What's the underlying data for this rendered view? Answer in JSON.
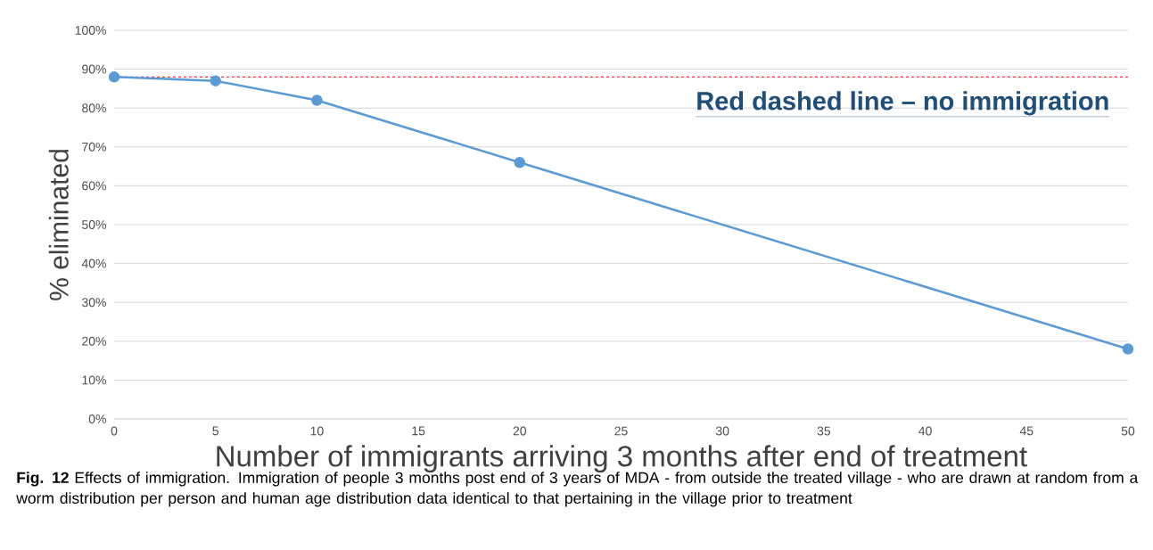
{
  "chart_data": {
    "type": "line",
    "xlabel": "Number of immigrants arriving 3 months after end of treatment",
    "ylabel": "% eliminated",
    "x": [
      0,
      5,
      10,
      20,
      50
    ],
    "series": [
      {
        "color": "#5b9bd5",
        "values": [
          88,
          87,
          82,
          66,
          18
        ]
      }
    ],
    "marker": "circle",
    "line_style": "solid",
    "xlim": [
      0,
      50
    ],
    "xticks": [
      0,
      5,
      10,
      15,
      20,
      25,
      30,
      35,
      40,
      45,
      50
    ],
    "ylim": [
      0,
      100
    ],
    "yticks": [
      {
        "value": 0,
        "label": "0%"
      },
      {
        "value": 10,
        "label": "10%"
      },
      {
        "value": 20,
        "label": "20%"
      },
      {
        "value": 30,
        "label": "30%"
      },
      {
        "value": 40,
        "label": "40%"
      },
      {
        "value": 50,
        "label": "50%"
      },
      {
        "value": 60,
        "label": "60%"
      },
      {
        "value": 70,
        "label": "70%"
      },
      {
        "value": 80,
        "label": "80%"
      },
      {
        "value": 90,
        "label": "90%"
      },
      {
        "value": 100,
        "label": "100%"
      }
    ],
    "grid": "y",
    "ref_lines": [
      {
        "axis": "y",
        "value": 88,
        "color": "#ff0000",
        "line_style": "dashed"
      }
    ],
    "annotations": [
      "Red dashed line – no immigration",
      "**Fig. 12** Effects of immigration. Immigration of people 3 months post end of 3 years of MDA - from outside the treated village - who are drawn at random from a worm distribution per person and human age distribution data identical to that pertaining in the village prior to treatment"
    ]
  }
}
